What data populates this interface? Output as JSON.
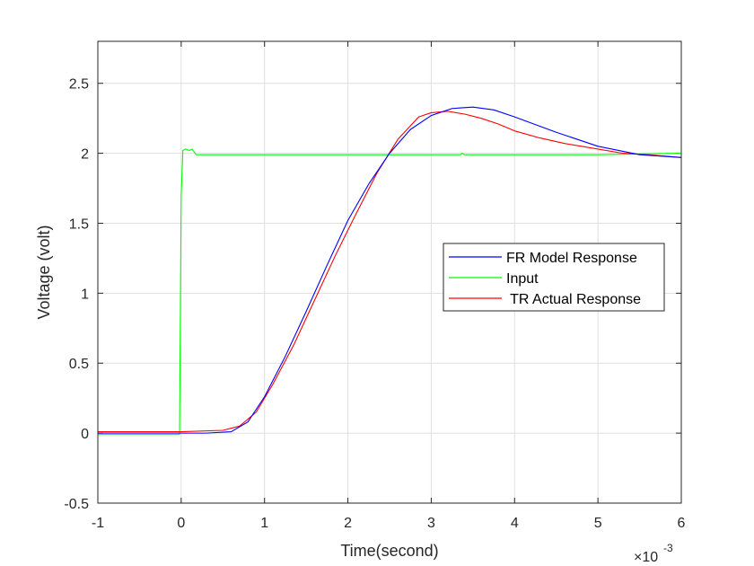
{
  "chart_data": {
    "type": "line",
    "xlabel": "Time(second)",
    "ylabel": "Voltage (volt)",
    "x_exponent_label": "×10",
    "x_exponent_power": "-3",
    "xlim": [
      -1,
      6
    ],
    "ylim": [
      -0.5,
      2.8
    ],
    "x_ticks": [
      -1,
      0,
      1,
      2,
      3,
      4,
      5,
      6
    ],
    "x_tick_labels": [
      "-1",
      "0",
      "1",
      "2",
      "3",
      "4",
      "5",
      "6"
    ],
    "y_ticks": [
      -0.5,
      0,
      0.5,
      1,
      1.5,
      2,
      2.5
    ],
    "y_tick_labels": [
      "-0.5",
      "0",
      "0.5",
      "1",
      "1.5",
      "2",
      "2.5"
    ],
    "grid": true,
    "legend_position": "center-right",
    "series": [
      {
        "name": "FR Model Response",
        "color": "#0000ff",
        "x": [
          -1,
          0,
          0.3,
          0.6,
          0.8,
          1.0,
          1.25,
          1.5,
          1.75,
          2.0,
          2.25,
          2.5,
          2.75,
          3.0,
          3.25,
          3.5,
          3.75,
          4.0,
          4.5,
          5.0,
          5.5,
          6.0
        ],
        "y": [
          0,
          0,
          0,
          0.01,
          0.08,
          0.26,
          0.55,
          0.87,
          1.2,
          1.52,
          1.78,
          2.0,
          2.17,
          2.27,
          2.32,
          2.33,
          2.31,
          2.26,
          2.15,
          2.05,
          1.99,
          1.97
        ]
      },
      {
        "name": "Input",
        "color": "#00ff00",
        "x": [
          -1,
          -0.5,
          -0.02,
          0.0,
          0.02,
          0.05,
          0.1,
          0.13,
          0.18,
          0.3,
          1.0,
          2.0,
          3.0,
          3.35,
          3.37,
          3.4,
          4.0,
          5.0,
          6.0
        ],
        "y": [
          -0.01,
          -0.01,
          -0.01,
          1.7,
          2.02,
          2.03,
          2.02,
          2.03,
          1.99,
          1.99,
          1.99,
          1.99,
          1.99,
          1.99,
          2.0,
          1.99,
          1.99,
          1.99,
          2.0
        ]
      },
      {
        "name": " TR Actual Response",
        "color": "#ff0000",
        "x": [
          -1,
          -0.5,
          0,
          0.5,
          0.7,
          0.9,
          1.1,
          1.35,
          1.6,
          1.85,
          2.1,
          2.35,
          2.6,
          2.85,
          3.0,
          3.2,
          3.4,
          3.6,
          3.8,
          4.0,
          4.3,
          4.6,
          5.0,
          5.3,
          5.6,
          6.0
        ],
        "y": [
          0.01,
          0.01,
          0.01,
          0.02,
          0.05,
          0.15,
          0.35,
          0.63,
          0.95,
          1.27,
          1.57,
          1.86,
          2.1,
          2.26,
          2.29,
          2.3,
          2.28,
          2.25,
          2.21,
          2.16,
          2.11,
          2.07,
          2.03,
          2.0,
          1.99,
          1.97
        ]
      }
    ]
  }
}
